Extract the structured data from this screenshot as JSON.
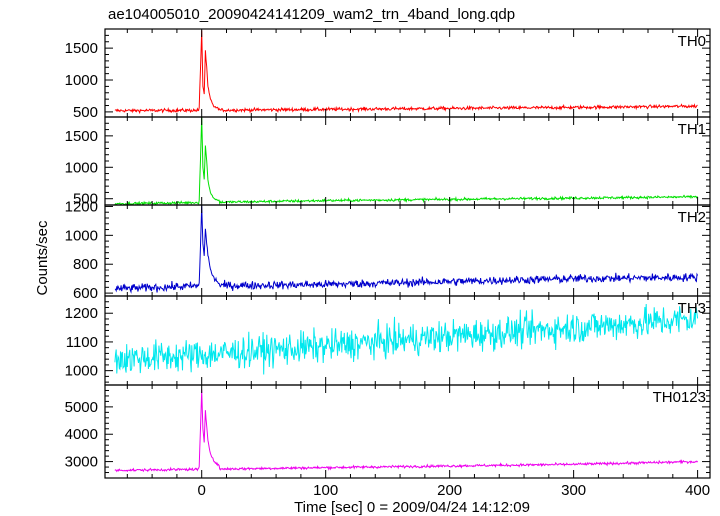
{
  "chart_data": {
    "type": "line",
    "title": "ae104005010_20090424141209_wam2_trn_4band_long.qdp",
    "xlabel": "Time [sec] 0 = 2009/04/24 14:12:09",
    "ylabel": "Counts/sec",
    "xlim": [
      -78,
      410
    ],
    "x_ticks": [
      0,
      100,
      200,
      300,
      400
    ],
    "panels": [
      {
        "name": "TH0",
        "color": "#ff0000",
        "ylim": [
          420,
          1800
        ],
        "y_ticks": [
          500,
          1000,
          1500
        ],
        "baseline": [
          [
            -70,
            520
          ],
          [
            0,
            525
          ],
          [
            100,
            540
          ],
          [
            200,
            555
          ],
          [
            300,
            570
          ],
          [
            400,
            590
          ]
        ],
        "noise": 25,
        "burst": [
          [
            -2,
            560
          ],
          [
            0,
            1780
          ],
          [
            1,
            900
          ],
          [
            2,
            780
          ],
          [
            3,
            1450
          ],
          [
            4,
            1200
          ],
          [
            5,
            900
          ],
          [
            7,
            700
          ],
          [
            10,
            580
          ],
          [
            14,
            550
          ]
        ]
      },
      {
        "name": "TH1",
        "color": "#00e000",
        "ylim": [
          400,
          1800
        ],
        "y_ticks": [
          500,
          1000,
          1500
        ],
        "baseline": [
          [
            -70,
            420
          ],
          [
            0,
            440
          ],
          [
            100,
            470
          ],
          [
            200,
            490
          ],
          [
            300,
            510
          ],
          [
            400,
            530
          ]
        ],
        "noise": 20,
        "burst": [
          [
            -2,
            470
          ],
          [
            0,
            1800
          ],
          [
            1,
            1000
          ],
          [
            2,
            800
          ],
          [
            3,
            1350
          ],
          [
            4,
            1100
          ],
          [
            5,
            800
          ],
          [
            7,
            600
          ],
          [
            10,
            500
          ],
          [
            14,
            470
          ]
        ]
      },
      {
        "name": "TH2",
        "color": "#0000cc",
        "ylim": [
          580,
          1210
        ],
        "y_ticks": [
          600,
          800,
          1000,
          1200
        ],
        "baseline": [
          [
            -70,
            630
          ],
          [
            0,
            650
          ],
          [
            100,
            660
          ],
          [
            200,
            680
          ],
          [
            300,
            700
          ],
          [
            400,
            710
          ]
        ],
        "noise": 28,
        "burst": [
          [
            -2,
            660
          ],
          [
            0,
            1200
          ],
          [
            1,
            950
          ],
          [
            2,
            850
          ],
          [
            3,
            1050
          ],
          [
            4,
            950
          ],
          [
            5,
            870
          ],
          [
            7,
            760
          ],
          [
            10,
            700
          ],
          [
            14,
            670
          ]
        ]
      },
      {
        "name": "TH3",
        "color": "#00e8ee",
        "ylim": [
          950,
          1260
        ],
        "y_ticks": [
          1000,
          1100,
          1200
        ],
        "baseline": [
          [
            -70,
            1040
          ],
          [
            0,
            1055
          ],
          [
            100,
            1085
          ],
          [
            200,
            1120
          ],
          [
            300,
            1150
          ],
          [
            400,
            1180
          ]
        ],
        "noise": 55,
        "burst": []
      },
      {
        "name": "TH0123",
        "color": "#ee00ee",
        "ylim": [
          2400,
          5800
        ],
        "y_ticks": [
          3000,
          4000,
          5000
        ],
        "baseline": [
          [
            -70,
            2680
          ],
          [
            0,
            2720
          ],
          [
            100,
            2780
          ],
          [
            200,
            2840
          ],
          [
            300,
            2900
          ],
          [
            400,
            3000
          ]
        ],
        "noise": 45,
        "burst": [
          [
            -2,
            2800
          ],
          [
            0,
            5600
          ],
          [
            1,
            4200
          ],
          [
            2,
            3700
          ],
          [
            3,
            4900
          ],
          [
            4,
            4300
          ],
          [
            5,
            3800
          ],
          [
            7,
            3300
          ],
          [
            10,
            3000
          ],
          [
            14,
            2850
          ]
        ]
      }
    ]
  }
}
